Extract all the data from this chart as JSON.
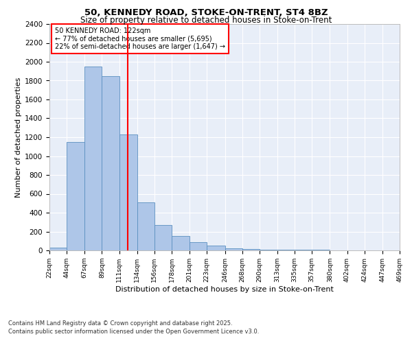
{
  "title1": "50, KENNEDY ROAD, STOKE-ON-TRENT, ST4 8BZ",
  "title2": "Size of property relative to detached houses in Stoke-on-Trent",
  "xlabel": "Distribution of detached houses by size in Stoke-on-Trent",
  "ylabel": "Number of detached properties",
  "bin_edges": [
    22,
    44,
    67,
    89,
    111,
    134,
    156,
    178,
    201,
    223,
    246,
    268,
    290,
    313,
    335,
    357,
    380,
    402,
    424,
    447,
    469
  ],
  "bar_heights": [
    30,
    1150,
    1950,
    1850,
    1230,
    510,
    270,
    150,
    85,
    50,
    25,
    15,
    10,
    8,
    5,
    4,
    3,
    2,
    2,
    1
  ],
  "bar_color": "#aec6e8",
  "bar_edge_color": "#5a8fc0",
  "red_line_x": 122,
  "annotation_title": "50 KENNEDY ROAD: 122sqm",
  "annotation_line1": "← 77% of detached houses are smaller (5,695)",
  "annotation_line2": "22% of semi-detached houses are larger (1,647) →",
  "ylim": [
    0,
    2400
  ],
  "yticks": [
    0,
    200,
    400,
    600,
    800,
    1000,
    1200,
    1400,
    1600,
    1800,
    2000,
    2200,
    2400
  ],
  "bg_color": "#e8eef8",
  "footer1": "Contains HM Land Registry data © Crown copyright and database right 2025.",
  "footer2": "Contains public sector information licensed under the Open Government Licence v3.0."
}
